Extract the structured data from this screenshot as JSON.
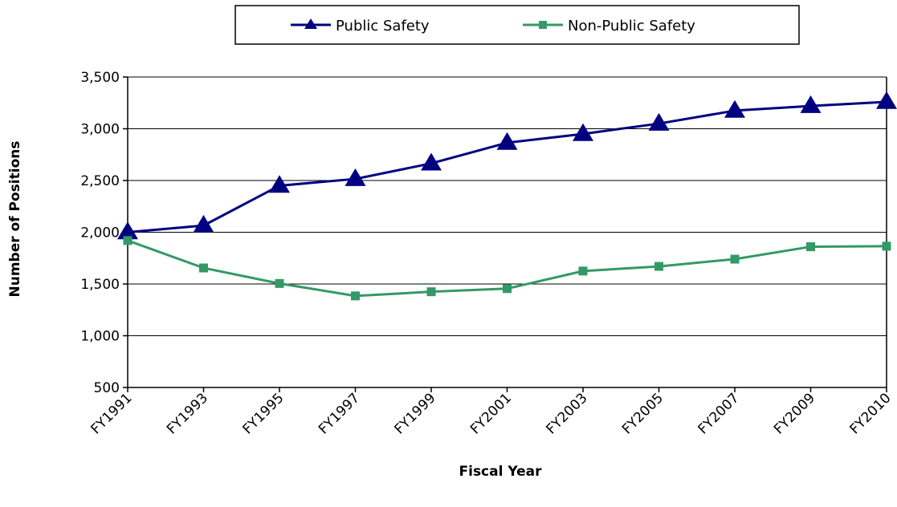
{
  "chart_data": {
    "type": "line",
    "title": "",
    "xlabel": "Fiscal Year",
    "ylabel": "Number of Positions",
    "categories": [
      "FY1991",
      "FY1993",
      "FY1995",
      "FY1997",
      "FY1999",
      "FY2001",
      "FY2003",
      "FY2005",
      "FY2007",
      "FY2009",
      "FY2010"
    ],
    "ylim": [
      500,
      3500
    ],
    "yticks": [
      500,
      1000,
      1500,
      2000,
      2500,
      3000,
      3500
    ],
    "ytick_labels": [
      "500",
      "1,000",
      "1,500",
      "2,000",
      "2,500",
      "3,000",
      "3,500"
    ],
    "grid": "horizontal",
    "legend_position": "top",
    "series": [
      {
        "name": "Public Safety",
        "color": "#000080",
        "marker": "triangle",
        "values": [
          2000,
          2065,
          2450,
          2515,
          2665,
          2865,
          2950,
          3050,
          3175,
          3220,
          3260
        ]
      },
      {
        "name": "Non-Public Safety",
        "color": "#339966",
        "marker": "square",
        "values": [
          1920,
          1655,
          1505,
          1385,
          1425,
          1455,
          1625,
          1670,
          1740,
          1860,
          1865
        ]
      }
    ]
  }
}
